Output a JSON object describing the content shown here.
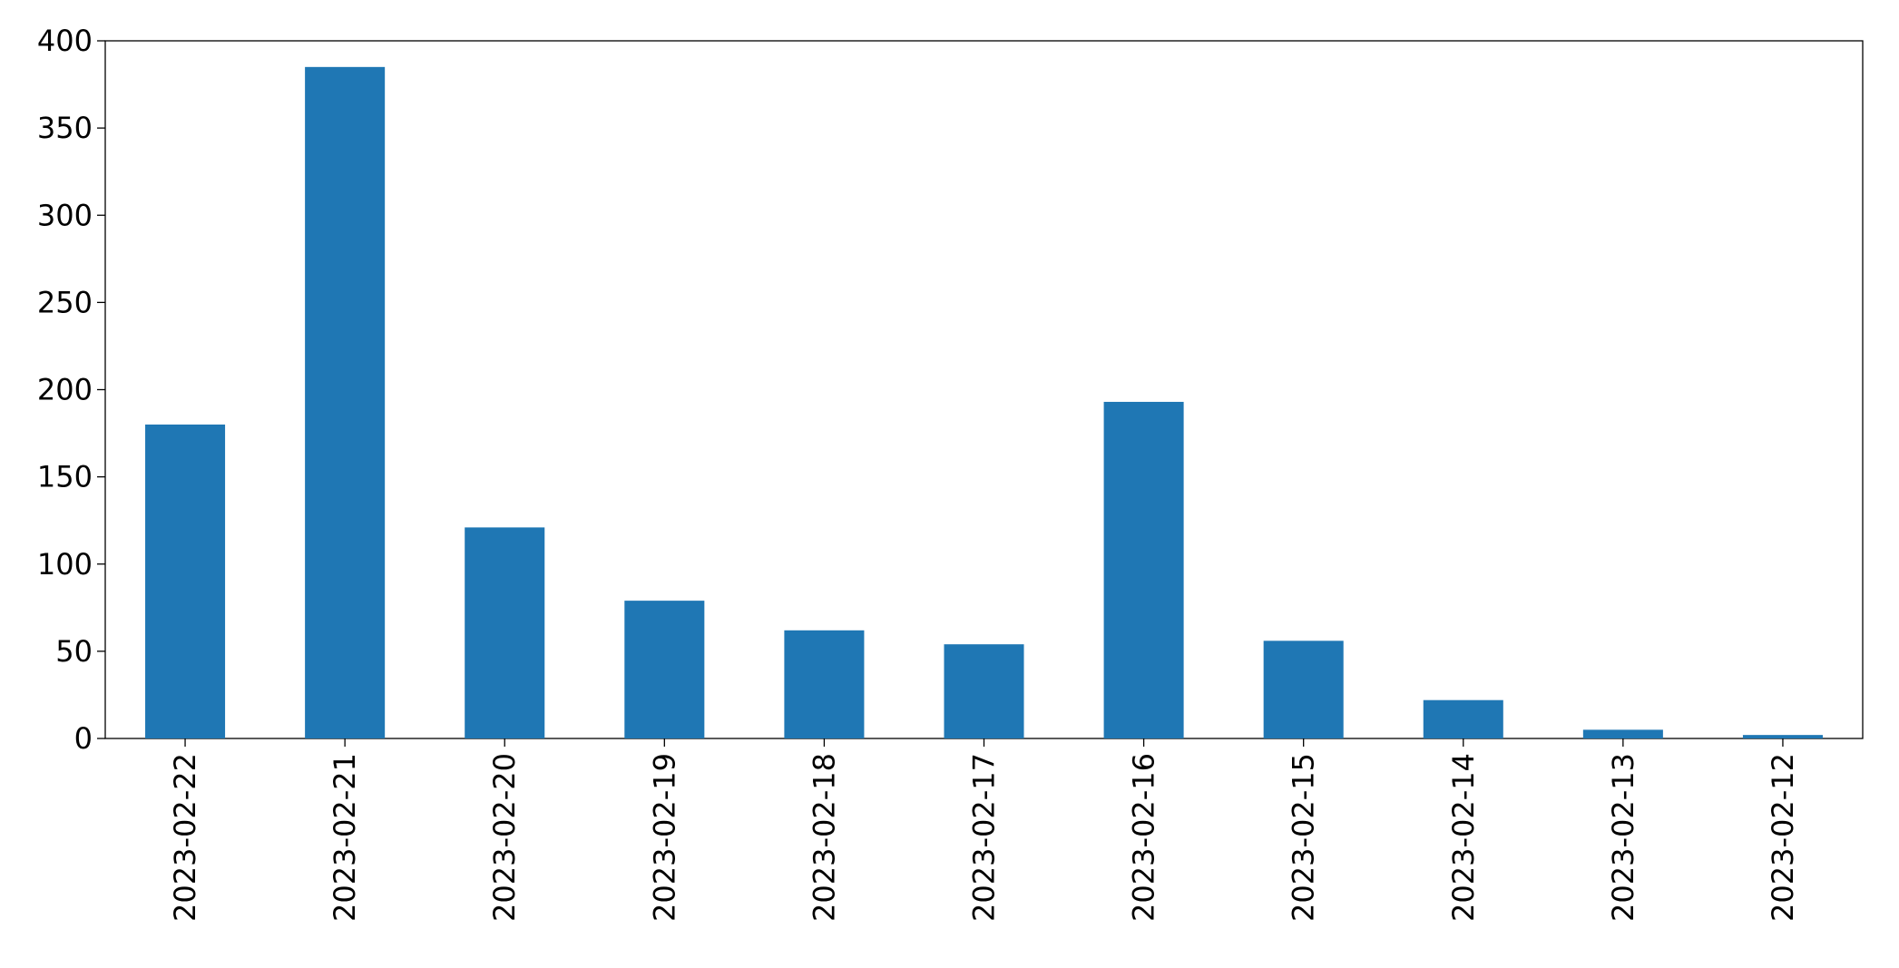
{
  "chart_data": {
    "type": "bar",
    "categories": [
      "2023-02-22",
      "2023-02-21",
      "2023-02-20",
      "2023-02-19",
      "2023-02-18",
      "2023-02-17",
      "2023-02-16",
      "2023-02-15",
      "2023-02-14",
      "2023-02-13",
      "2023-02-12"
    ],
    "values": [
      180,
      385,
      121,
      79,
      62,
      54,
      193,
      56,
      22,
      5,
      2
    ],
    "color": "#1f77b4",
    "ylim": [
      0,
      400
    ],
    "yticks": [
      0,
      50,
      100,
      150,
      200,
      250,
      300,
      350,
      400
    ],
    "grid": false
  }
}
